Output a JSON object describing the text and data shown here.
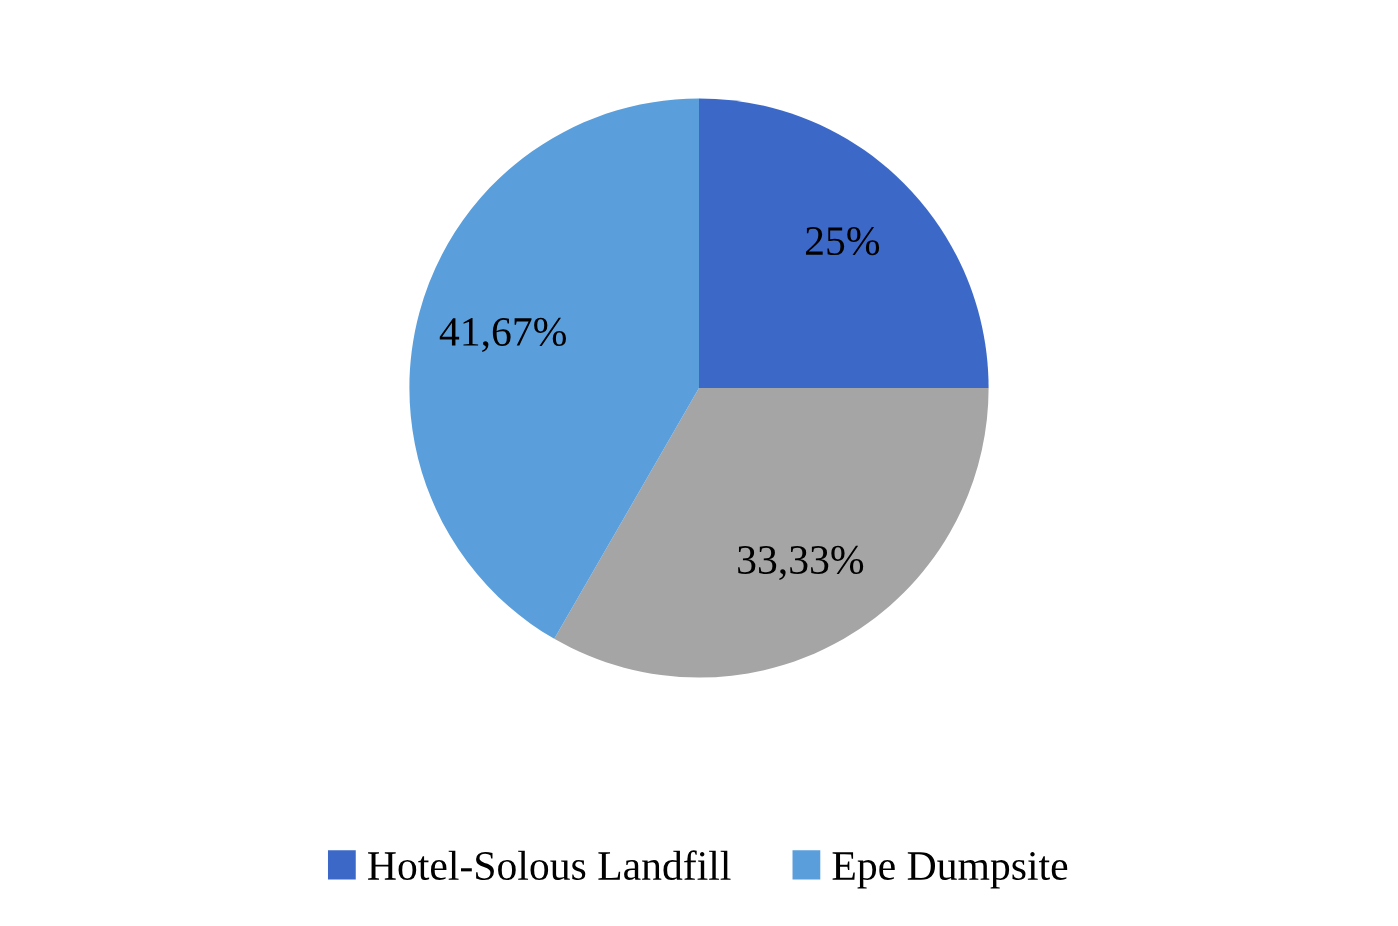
{
  "chart_data": {
    "type": "pie",
    "categories": [
      "Hotel-Solous Landfill",
      null,
      "Epe Dumpsite"
    ],
    "values": [
      25,
      33.33,
      41.67
    ],
    "colors": [
      "#3c69c8",
      "#a5a5a5",
      "#5a9fdc"
    ],
    "value_labels": [
      "25%",
      "33,33%",
      "41,67%"
    ],
    "legend": "bottom"
  }
}
